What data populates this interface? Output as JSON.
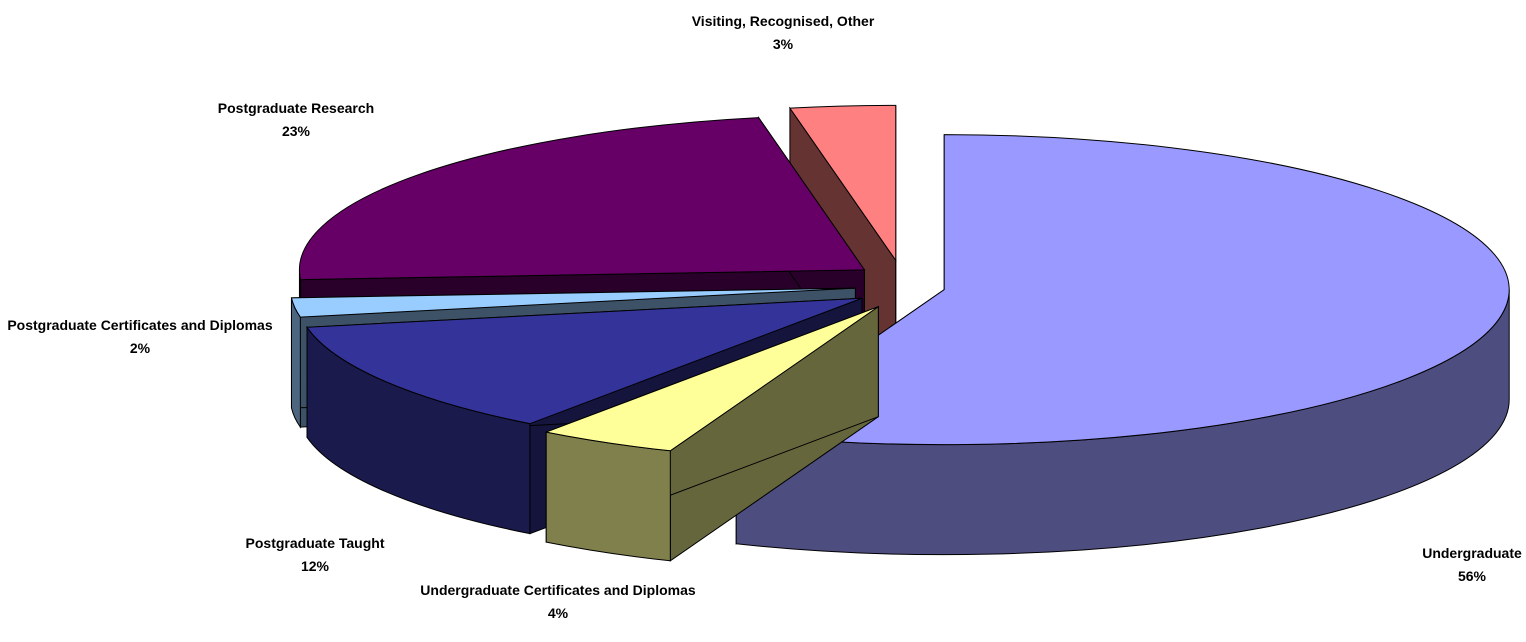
{
  "chart_data": {
    "type": "pie3d",
    "categories": [
      "Undergraduate",
      "Undergraduate Certificates and Diplomas",
      "Postgraduate Taught",
      "Postgraduate Certificates and Diplomas",
      "Postgraduate Research",
      "Visiting, Recognised, Other"
    ],
    "values": [
      56,
      4,
      12,
      2,
      23,
      3
    ],
    "value_labels": [
      "56%",
      "4%",
      "12%",
      "2%",
      "23%",
      "3%"
    ],
    "colors": [
      "#9999ff",
      "#ffff99",
      "#333399",
      "#99ccff",
      "#660066",
      "#ff8080"
    ]
  }
}
